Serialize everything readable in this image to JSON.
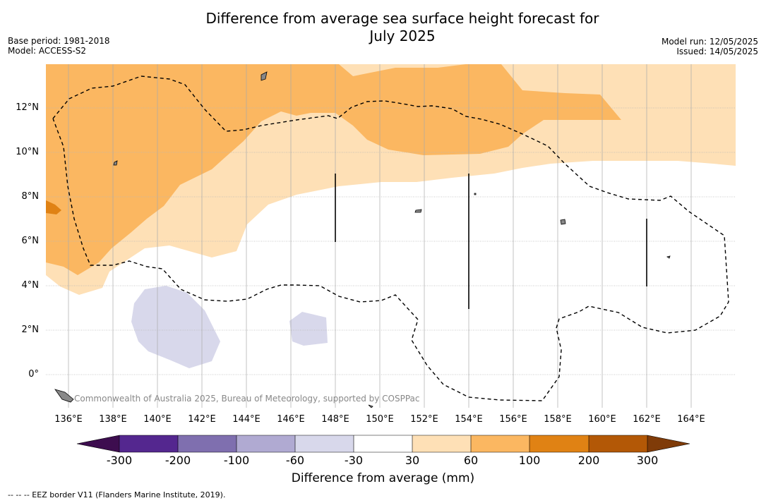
{
  "title": {
    "line1": "Difference from average sea surface height forecast for",
    "line2": "July 2025"
  },
  "meta_left": {
    "base_period": "Base period: 1981-2018",
    "model": "Model: ACCESS-S2"
  },
  "meta_right": {
    "model_run": "Model run: 12/05/2025",
    "issued": "Issued: 14/05/2025"
  },
  "latitude_labels": [
    "12°N",
    "10°N",
    "8°N",
    "6°N",
    "4°N",
    "2°N",
    "0°"
  ],
  "longitude_labels": [
    "136°E",
    "138°E",
    "140°E",
    "142°E",
    "144°E",
    "146°E",
    "148°E",
    "150°E",
    "152°E",
    "154°E",
    "156°E",
    "158°E",
    "160°E",
    "162°E",
    "164°E"
  ],
  "copyright": "Commonwealth of Australia 2025, Bureau of Meteorology, supported by COSPPac",
  "colorbar": {
    "title": "Difference from average (mm)",
    "ticks": [
      "-300",
      "-200",
      "-100",
      "-60",
      "-30",
      "30",
      "60",
      "100",
      "200",
      "300"
    ],
    "colors": [
      "#3d0d4f",
      "#54278f",
      "#7f6faf",
      "#b0aad2",
      "#d8d8eb",
      "#ffffff",
      "#fee0b6",
      "#fbb761",
      "#e08214",
      "#b35806",
      "#7f3b08"
    ]
  },
  "footer": "--  --  -- EEZ border V11 (Flanders Marine Institute, 2019)."
}
